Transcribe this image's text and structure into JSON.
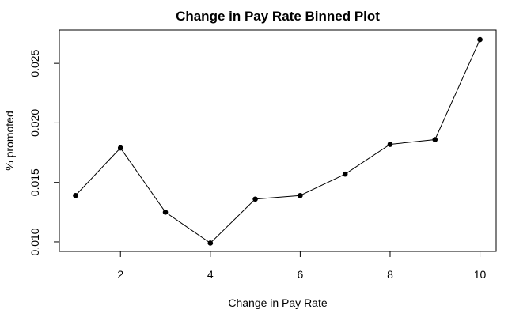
{
  "chart_data": {
    "type": "line",
    "title": "Change in Pay Rate Binned Plot",
    "xlabel": "Change in Pay Rate",
    "ylabel": "% promoted",
    "x": [
      1,
      2,
      3,
      4,
      5,
      6,
      7,
      8,
      9,
      10
    ],
    "series": [
      {
        "values": [
          0.0139,
          0.0179,
          0.0125,
          0.0099,
          0.0136,
          0.0139,
          0.0157,
          0.0182,
          0.0186,
          0.027
        ]
      }
    ],
    "xlim": [
      0.64,
      10.36
    ],
    "ylim": [
      0.0092,
      0.0278
    ],
    "xticks": [
      2,
      4,
      6,
      8,
      10
    ],
    "xtick_labels": [
      "2",
      "4",
      "6",
      "8",
      "10"
    ],
    "yticks": [
      0.01,
      0.015,
      0.02,
      0.025
    ],
    "ytick_labels": [
      "0.010",
      "0.015",
      "0.020",
      "0.025"
    ],
    "grid": false,
    "line_color": "#000000",
    "marker": "filled-circle"
  }
}
